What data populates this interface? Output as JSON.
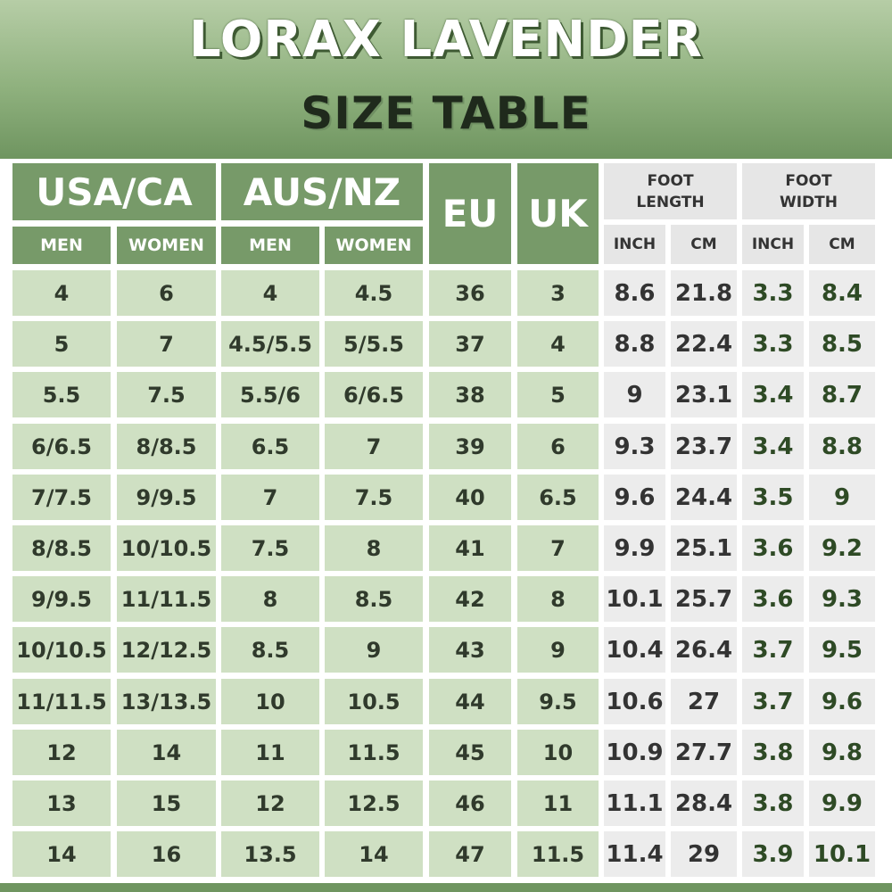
{
  "title": "LORAX LAVENDER",
  "subtitle": "SIZE TABLE",
  "headers": {
    "usa_ca": "USA/CA",
    "aus_nz": "AUS/NZ",
    "eu": "EU",
    "uk": "UK",
    "men": "MEN",
    "women": "WOMEN",
    "foot_length": "FOOT\nLENGTH",
    "foot_width": "FOOT\nWIDTH",
    "inch": "INCH",
    "cm": "CM"
  },
  "rows": [
    [
      "4",
      "6",
      "4",
      "4.5",
      "36",
      "3",
      "8.6",
      "21.8",
      "3.3",
      "8.4"
    ],
    [
      "5",
      "7",
      "4.5/5.5",
      "5/5.5",
      "37",
      "4",
      "8.8",
      "22.4",
      "3.3",
      "8.5"
    ],
    [
      "5.5",
      "7.5",
      "5.5/6",
      "6/6.5",
      "38",
      "5",
      "9",
      "23.1",
      "3.4",
      "8.7"
    ],
    [
      "6/6.5",
      "8/8.5",
      "6.5",
      "7",
      "39",
      "6",
      "9.3",
      "23.7",
      "3.4",
      "8.8"
    ],
    [
      "7/7.5",
      "9/9.5",
      "7",
      "7.5",
      "40",
      "6.5",
      "9.6",
      "24.4",
      "3.5",
      "9"
    ],
    [
      "8/8.5",
      "10/10.5",
      "7.5",
      "8",
      "41",
      "7",
      "9.9",
      "25.1",
      "3.6",
      "9.2"
    ],
    [
      "9/9.5",
      "11/11.5",
      "8",
      "8.5",
      "42",
      "8",
      "10.1",
      "25.7",
      "3.6",
      "9.3"
    ],
    [
      "10/10.5",
      "12/12.5",
      "8.5",
      "9",
      "43",
      "9",
      "10.4",
      "26.4",
      "3.7",
      "9.5"
    ],
    [
      "11/11.5",
      "13/13.5",
      "10",
      "10.5",
      "44",
      "9.5",
      "10.6",
      "27",
      "3.7",
      "9.6"
    ],
    [
      "12",
      "14",
      "11",
      "11.5",
      "45",
      "10",
      "10.9",
      "27.7",
      "3.8",
      "9.8"
    ],
    [
      "13",
      "15",
      "12",
      "12.5",
      "46",
      "11",
      "11.1",
      "28.4",
      "3.8",
      "9.9"
    ],
    [
      "14",
      "16",
      "13.5",
      "14",
      "47",
      "11.5",
      "11.4",
      "29",
      "3.9",
      "10.1"
    ]
  ],
  "colors": {
    "header_green": "#779a69",
    "cell_green": "#cfe0c3",
    "cell_grey": "#ececec",
    "header_grey": "#e6e6e6"
  }
}
